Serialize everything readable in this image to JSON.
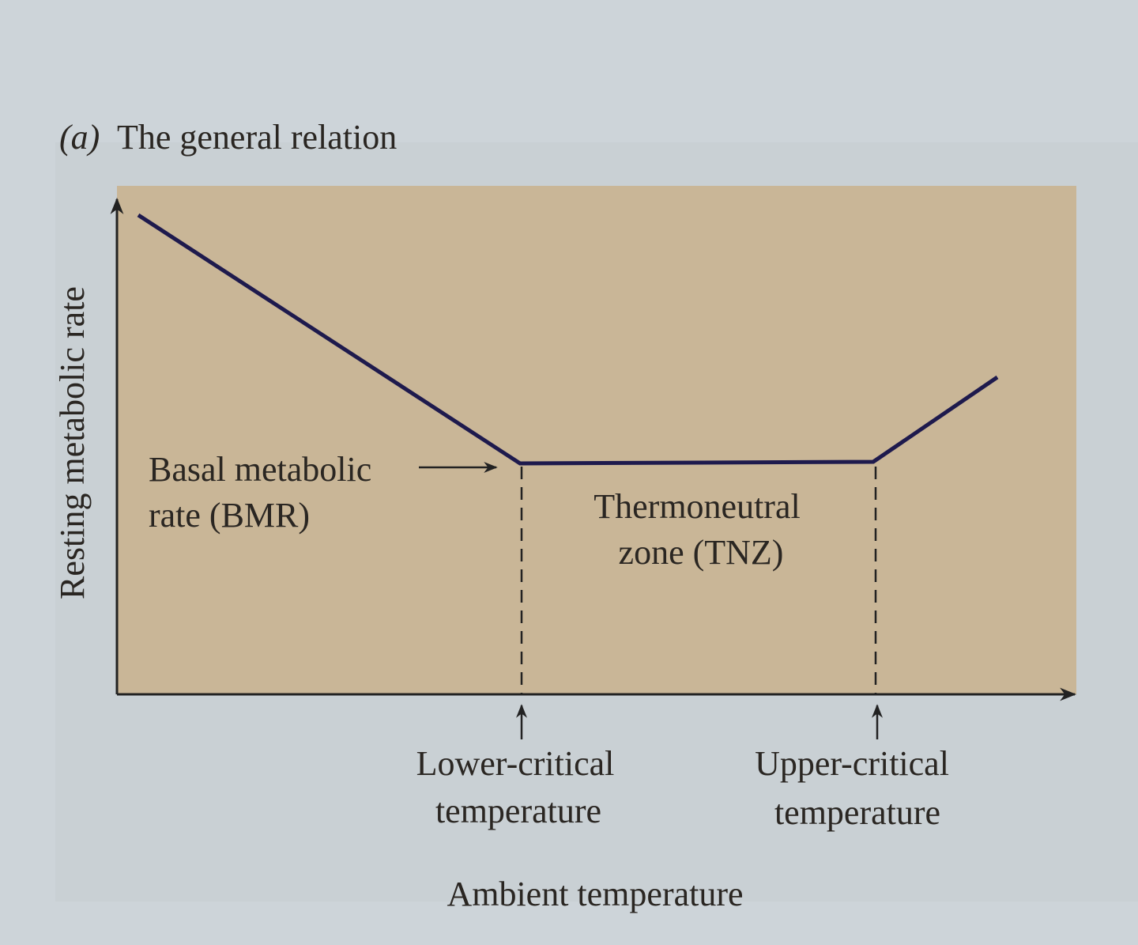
{
  "panel_label": "(a)",
  "title": "The general relation",
  "y_axis_label": "Resting metabolic rate",
  "x_axis_label": "Ambient temperature",
  "annotations": {
    "bmr": [
      "Basal metabolic",
      "rate (BMR)"
    ],
    "tnz": [
      "Thermoneutral",
      "zone (TNZ)"
    ],
    "lower_critical": [
      "Lower-critical",
      "temperature"
    ],
    "upper_critical": [
      "Upper-critical",
      "temperature"
    ]
  }
}
